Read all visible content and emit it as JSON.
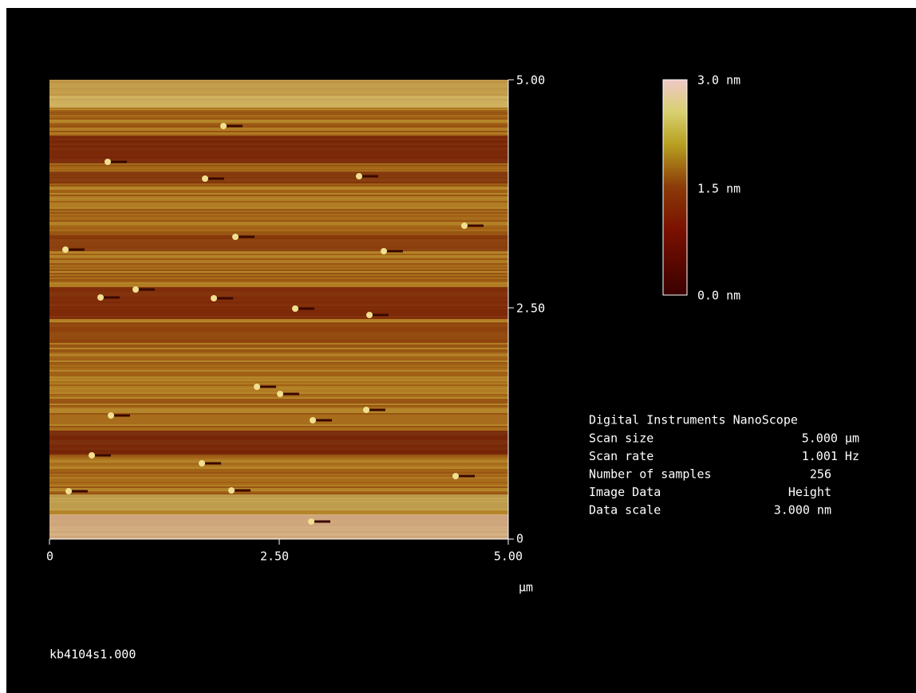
{
  "image": {
    "x_axis": {
      "ticks": [
        "0",
        "2.50",
        "5.00"
      ],
      "unit": "µm"
    },
    "y_axis": {
      "ticks": [
        "5.00",
        "2.50",
        "0"
      ]
    },
    "color_scale": {
      "labels": [
        "3.0 nm",
        "1.5 nm",
        "0.0 nm"
      ]
    }
  },
  "info": {
    "title": "Digital Instruments NanoScope",
    "rows": [
      [
        "Scan size",
        "5.000 µm"
      ],
      [
        "Scan rate",
        "1.001 Hz"
      ],
      [
        "Number of samples",
        "256"
      ],
      [
        "Image Data",
        "Height"
      ],
      [
        "Data scale",
        "3.000 nm"
      ]
    ]
  },
  "footer": {
    "filename": "kb4104s1.000"
  }
}
